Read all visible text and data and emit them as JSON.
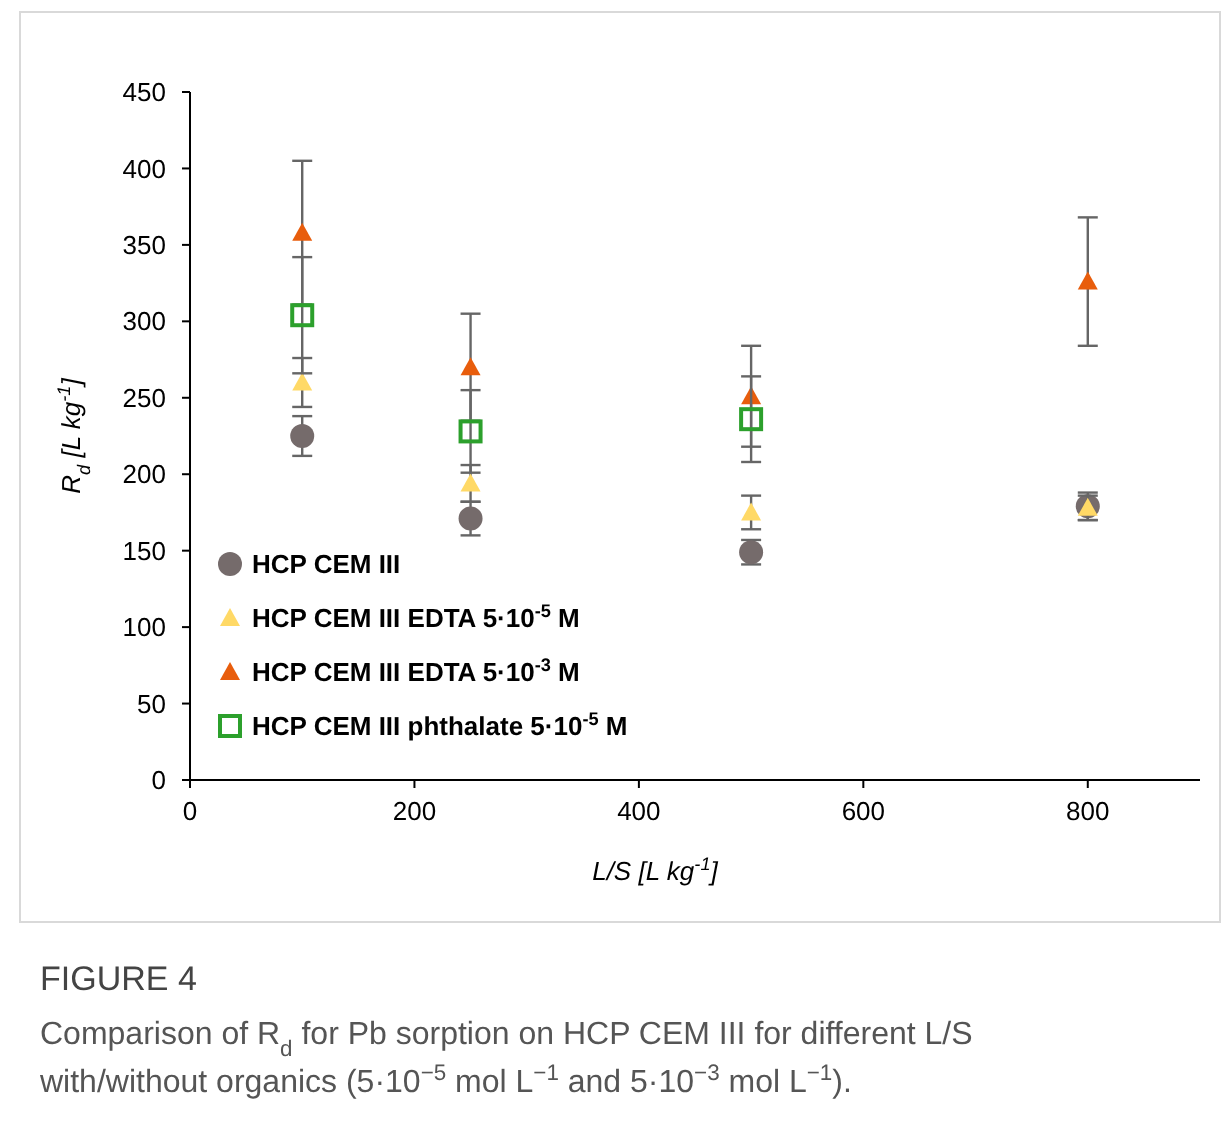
{
  "chart_data": {
    "type": "scatter",
    "title": "FIGURE 4",
    "annotations": [
      "Comparison of R$_{d}$ for Pb sorption on HCP CEM III for different L/S with/without organics (5·10$^{−5}$ mol L$^{−1}$ and 5·10$^{−3}$ mol L$^{−1}$)."
    ],
    "xlabel": "L/S [L kg$^{-1}$]",
    "ylabel": "R$_{d}$ [L kg$^{-1}$]",
    "xlim": [
      0,
      900
    ],
    "xticks": [
      0,
      200,
      400,
      600,
      800
    ],
    "ylim": [
      0,
      450
    ],
    "yticks": [
      0,
      50,
      100,
      150,
      200,
      250,
      300,
      350,
      400,
      450
    ],
    "grid": false,
    "legend": "bottom left",
    "series": [
      {
        "name": "HCP CEM III",
        "color": "#756b6b",
        "marker": "circle",
        "x": [
          100,
          250,
          500,
          800
        ],
        "values": [
          225,
          171,
          149,
          179
        ],
        "errors": [
          13,
          11,
          8,
          9
        ]
      },
      {
        "name": "HCP CEM III EDTA 5·10$^{-5}$ M",
        "color": "#ffd966",
        "marker": "triangle",
        "x": [
          100,
          250,
          500,
          800
        ],
        "values": [
          260,
          194,
          175,
          178
        ],
        "errors": [
          16,
          12,
          11,
          8
        ]
      },
      {
        "name": "HCP CEM III EDTA 5·10$^{-3}$ M",
        "color": "#e85d0c",
        "marker": "triangle",
        "x": [
          100,
          250,
          500,
          800
        ],
        "values": [
          358,
          270,
          251,
          326
        ],
        "errors": [
          47,
          35,
          33,
          42
        ]
      },
      {
        "name": "HCP CEM III phthalate 5·10$^{-5}$ M",
        "color": "#2ca02c",
        "marker": "square",
        "x": [
          100,
          250,
          500
        ],
        "values": [
          304,
          228,
          236
        ],
        "errors": [
          38,
          27,
          28
        ]
      }
    ]
  }
}
